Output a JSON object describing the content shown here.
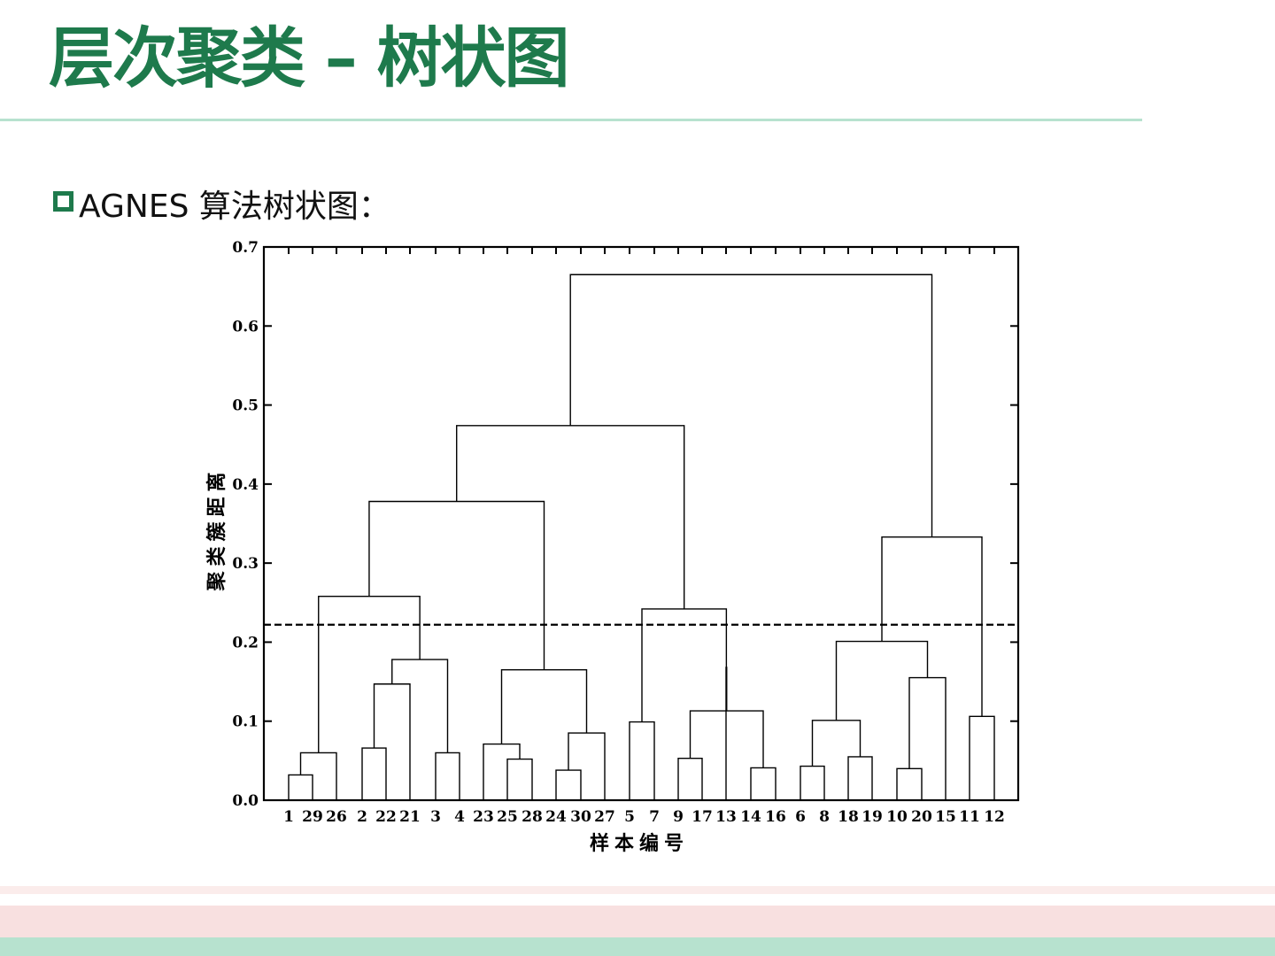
{
  "slide": {
    "title": "层次聚类 – 树状图",
    "bullet_text": "AGNES 算法树状图："
  },
  "colors": {
    "title": "#1e7a4c",
    "rule": "#b7e2cf",
    "band_pink": "#f8e0e0",
    "band_green": "#b7e2cf"
  },
  "chart_data": {
    "type": "dendrogram",
    "xlabel": "样本编号",
    "ylabel": "聚类簇距离",
    "ylim": [
      0,
      0.7
    ],
    "yticks": [
      0.0,
      0.1,
      0.2,
      0.3,
      0.4,
      0.5,
      0.6,
      0.7
    ],
    "ytick_labels": [
      "0.0",
      "0.1",
      "0.2",
      "0.3",
      "0.4",
      "0.5",
      "0.6",
      "0.7"
    ],
    "leaf_order": [
      "1",
      "29",
      "26",
      "2",
      "22",
      "21",
      "3",
      "4",
      "23",
      "25",
      "28",
      "24",
      "30",
      "27",
      "5",
      "7",
      "9",
      "17",
      "13",
      "14",
      "16",
      "6",
      "8",
      "18",
      "19",
      "10",
      "20",
      "15",
      "11",
      "12"
    ],
    "cut_line": 0.222,
    "merges": [
      {
        "a": "1",
        "b": "29",
        "height": 0.032
      },
      {
        "a": "1-29",
        "b": "26",
        "height": 0.06
      },
      {
        "a": "2",
        "b": "22",
        "height": 0.066
      },
      {
        "a": "2-22",
        "b": "21",
        "height": 0.147
      },
      {
        "a": "3",
        "b": "4",
        "height": 0.06
      },
      {
        "a": "2-22-21",
        "b": "3-4",
        "height": 0.178
      },
      {
        "a": "1-29-26",
        "b": "2-22-21-3-4",
        "height": 0.258
      },
      {
        "a": "25",
        "b": "28",
        "height": 0.052
      },
      {
        "a": "23",
        "b": "25-28",
        "height": 0.071
      },
      {
        "a": "24",
        "b": "30",
        "height": 0.038
      },
      {
        "a": "24-30",
        "b": "27",
        "height": 0.085
      },
      {
        "a": "23-25-28",
        "b": "24-30-27",
        "height": 0.165
      },
      {
        "a": "1-...-4",
        "b": "23-...-27",
        "height": 0.378
      },
      {
        "a": "5",
        "b": "7",
        "height": 0.099
      },
      {
        "a": "9",
        "b": "17",
        "height": 0.053
      },
      {
        "a": "14",
        "b": "16",
        "height": 0.041
      },
      {
        "a": "9-17",
        "b": "14-16",
        "height": 0.113
      },
      {
        "a": "13",
        "b": "9-17-14-16",
        "height": 0.168
      },
      {
        "a": "5-7",
        "b": "13-9-17-14-16",
        "height": 0.242
      },
      {
        "a": "1-...-27",
        "b": "5-...-16",
        "height": 0.474
      },
      {
        "a": "6",
        "b": "8",
        "height": 0.043
      },
      {
        "a": "18",
        "b": "19",
        "height": 0.055
      },
      {
        "a": "6-8",
        "b": "18-19",
        "height": 0.101
      },
      {
        "a": "10",
        "b": "20",
        "height": 0.04
      },
      {
        "a": "10-20",
        "b": "15",
        "height": 0.155
      },
      {
        "a": "6-8-18-19",
        "b": "10-20-15",
        "height": 0.201
      },
      {
        "a": "11",
        "b": "12",
        "height": 0.106
      },
      {
        "a": "6-...-15",
        "b": "11-12",
        "height": 0.333
      },
      {
        "a": "1-...-16",
        "b": "6-...-12",
        "height": 0.665
      }
    ]
  }
}
